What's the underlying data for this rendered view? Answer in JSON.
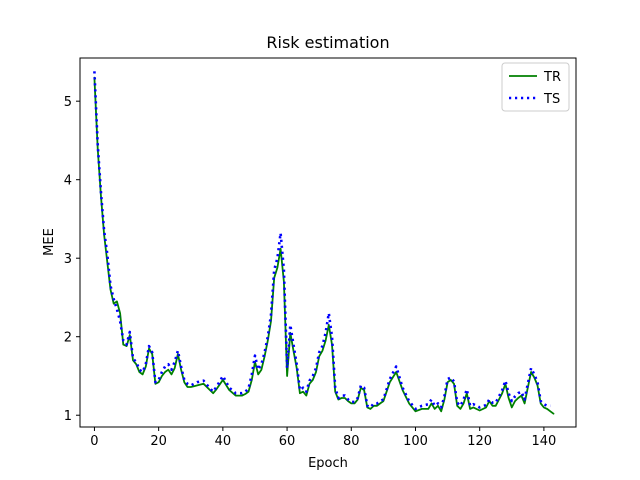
{
  "chart_data": {
    "type": "line",
    "title": "Risk estimation",
    "xlabel": "Epoch",
    "ylabel": "MEE",
    "xlim": [
      -4.5,
      150
    ],
    "ylim": [
      0.85,
      5.55
    ],
    "xticks": [
      0,
      20,
      40,
      60,
      80,
      100,
      120,
      140
    ],
    "yticks": [
      1,
      2,
      3,
      4,
      5
    ],
    "grid": false,
    "legend_position": "top-right",
    "series": [
      {
        "name": "TR",
        "color": "#008000",
        "style": "solid",
        "keypoints": [
          [
            0,
            5.3
          ],
          [
            1,
            4.4
          ],
          [
            2,
            3.8
          ],
          [
            3,
            3.3
          ],
          [
            4,
            2.95
          ],
          [
            5,
            2.6
          ],
          [
            6,
            2.42
          ],
          [
            7,
            2.45
          ],
          [
            8,
            2.3
          ],
          [
            9,
            1.9
          ],
          [
            10,
            1.88
          ],
          [
            11,
            2.02
          ],
          [
            12,
            1.7
          ],
          [
            13,
            1.65
          ],
          [
            14,
            1.55
          ],
          [
            15,
            1.52
          ],
          [
            16,
            1.62
          ],
          [
            17,
            1.85
          ],
          [
            18,
            1.78
          ],
          [
            19,
            1.4
          ],
          [
            20,
            1.42
          ],
          [
            21,
            1.5
          ],
          [
            22,
            1.55
          ],
          [
            23,
            1.58
          ],
          [
            24,
            1.52
          ],
          [
            25,
            1.6
          ],
          [
            26,
            1.78
          ],
          [
            27,
            1.58
          ],
          [
            28,
            1.42
          ],
          [
            29,
            1.36
          ],
          [
            30,
            1.36
          ],
          [
            31,
            1.37
          ],
          [
            32,
            1.38
          ],
          [
            34,
            1.4
          ],
          [
            36,
            1.32
          ],
          [
            37,
            1.28
          ],
          [
            38,
            1.33
          ],
          [
            40,
            1.45
          ],
          [
            42,
            1.32
          ],
          [
            44,
            1.25
          ],
          [
            46,
            1.25
          ],
          [
            47,
            1.27
          ],
          [
            48,
            1.3
          ],
          [
            49,
            1.45
          ],
          [
            50,
            1.68
          ],
          [
            51,
            1.52
          ],
          [
            52,
            1.58
          ],
          [
            53,
            1.75
          ],
          [
            54,
            1.95
          ],
          [
            55,
            2.2
          ],
          [
            56,
            2.75
          ],
          [
            57,
            2.88
          ],
          [
            58,
            3.12
          ],
          [
            59,
            2.7
          ],
          [
            60,
            1.5
          ],
          [
            61,
            2.05
          ],
          [
            62,
            1.82
          ],
          [
            63,
            1.6
          ],
          [
            64,
            1.28
          ],
          [
            65,
            1.3
          ],
          [
            66,
            1.25
          ],
          [
            67,
            1.4
          ],
          [
            68,
            1.45
          ],
          [
            69,
            1.55
          ],
          [
            70,
            1.75
          ],
          [
            71,
            1.82
          ],
          [
            72,
            1.95
          ],
          [
            73,
            2.15
          ],
          [
            74,
            1.9
          ],
          [
            75,
            1.3
          ],
          [
            76,
            1.2
          ],
          [
            77,
            1.22
          ],
          [
            78,
            1.22
          ],
          [
            79,
            1.18
          ],
          [
            80,
            1.15
          ],
          [
            81,
            1.15
          ],
          [
            82,
            1.2
          ],
          [
            83,
            1.35
          ],
          [
            84,
            1.32
          ],
          [
            85,
            1.1
          ],
          [
            86,
            1.08
          ],
          [
            87,
            1.12
          ],
          [
            88,
            1.12
          ],
          [
            89,
            1.15
          ],
          [
            90,
            1.18
          ],
          [
            92,
            1.42
          ],
          [
            94,
            1.55
          ],
          [
            96,
            1.32
          ],
          [
            98,
            1.15
          ],
          [
            100,
            1.05
          ],
          [
            102,
            1.08
          ],
          [
            104,
            1.08
          ],
          [
            105,
            1.15
          ],
          [
            106,
            1.08
          ],
          [
            107,
            1.12
          ],
          [
            108,
            1.05
          ],
          [
            109,
            1.2
          ],
          [
            110,
            1.42
          ],
          [
            111,
            1.45
          ],
          [
            112,
            1.4
          ],
          [
            113,
            1.12
          ],
          [
            114,
            1.08
          ],
          [
            115,
            1.15
          ],
          [
            116,
            1.28
          ],
          [
            117,
            1.08
          ],
          [
            118,
            1.1
          ],
          [
            120,
            1.06
          ],
          [
            122,
            1.1
          ],
          [
            123,
            1.18
          ],
          [
            124,
            1.12
          ],
          [
            125,
            1.12
          ],
          [
            126,
            1.2
          ],
          [
            127,
            1.28
          ],
          [
            128,
            1.4
          ],
          [
            129,
            1.22
          ],
          [
            130,
            1.1
          ],
          [
            131,
            1.18
          ],
          [
            132,
            1.22
          ],
          [
            133,
            1.25
          ],
          [
            134,
            1.15
          ],
          [
            135,
            1.35
          ],
          [
            136,
            1.55
          ],
          [
            137,
            1.48
          ],
          [
            138,
            1.38
          ],
          [
            139,
            1.15
          ],
          [
            140,
            1.1
          ],
          [
            141,
            1.08
          ],
          [
            142,
            1.05
          ],
          [
            143,
            1.02
          ]
        ]
      },
      {
        "name": "TS",
        "color": "#0000ff",
        "style": "dotted",
        "keypoints": [
          [
            0,
            5.38
          ],
          [
            1,
            4.45
          ],
          [
            2,
            3.85
          ],
          [
            3,
            3.35
          ],
          [
            4,
            3.05
          ],
          [
            5,
            2.65
          ],
          [
            6,
            2.48
          ],
          [
            7,
            2.35
          ],
          [
            8,
            2.2
          ],
          [
            9,
            1.95
          ],
          [
            10,
            1.9
          ],
          [
            11,
            2.06
          ],
          [
            12,
            1.72
          ],
          [
            13,
            1.68
          ],
          [
            14,
            1.58
          ],
          [
            15,
            1.55
          ],
          [
            16,
            1.65
          ],
          [
            17,
            1.88
          ],
          [
            18,
            1.8
          ],
          [
            19,
            1.42
          ],
          [
            20,
            1.45
          ],
          [
            21,
            1.55
          ],
          [
            22,
            1.62
          ],
          [
            23,
            1.65
          ],
          [
            24,
            1.58
          ],
          [
            25,
            1.68
          ],
          [
            26,
            1.82
          ],
          [
            27,
            1.62
          ],
          [
            28,
            1.45
          ],
          [
            29,
            1.4
          ],
          [
            30,
            1.38
          ],
          [
            31,
            1.4
          ],
          [
            32,
            1.42
          ],
          [
            34,
            1.44
          ],
          [
            36,
            1.34
          ],
          [
            37,
            1.3
          ],
          [
            38,
            1.36
          ],
          [
            40,
            1.5
          ],
          [
            42,
            1.35
          ],
          [
            44,
            1.28
          ],
          [
            46,
            1.28
          ],
          [
            47,
            1.3
          ],
          [
            48,
            1.34
          ],
          [
            49,
            1.52
          ],
          [
            50,
            1.76
          ],
          [
            51,
            1.58
          ],
          [
            52,
            1.65
          ],
          [
            53,
            1.8
          ],
          [
            54,
            2.0
          ],
          [
            55,
            2.28
          ],
          [
            56,
            2.85
          ],
          [
            57,
            3.0
          ],
          [
            58,
            3.32
          ],
          [
            59,
            2.85
          ],
          [
            60,
            1.6
          ],
          [
            61,
            2.15
          ],
          [
            62,
            1.9
          ],
          [
            63,
            1.65
          ],
          [
            64,
            1.32
          ],
          [
            65,
            1.35
          ],
          [
            66,
            1.3
          ],
          [
            67,
            1.44
          ],
          [
            68,
            1.5
          ],
          [
            69,
            1.6
          ],
          [
            70,
            1.8
          ],
          [
            71,
            1.88
          ],
          [
            72,
            2.05
          ],
          [
            73,
            2.3
          ],
          [
            74,
            2.0
          ],
          [
            75,
            1.35
          ],
          [
            76,
            1.22
          ],
          [
            77,
            1.25
          ],
          [
            78,
            1.25
          ],
          [
            79,
            1.2
          ],
          [
            80,
            1.17
          ],
          [
            81,
            1.17
          ],
          [
            82,
            1.22
          ],
          [
            83,
            1.38
          ],
          [
            84,
            1.35
          ],
          [
            85,
            1.12
          ],
          [
            86,
            1.1
          ],
          [
            87,
            1.15
          ],
          [
            88,
            1.15
          ],
          [
            89,
            1.18
          ],
          [
            90,
            1.2
          ],
          [
            92,
            1.46
          ],
          [
            94,
            1.62
          ],
          [
            96,
            1.35
          ],
          [
            98,
            1.18
          ],
          [
            100,
            1.08
          ],
          [
            102,
            1.12
          ],
          [
            104,
            1.14
          ],
          [
            105,
            1.2
          ],
          [
            106,
            1.12
          ],
          [
            107,
            1.15
          ],
          [
            108,
            1.1
          ],
          [
            109,
            1.24
          ],
          [
            110,
            1.46
          ],
          [
            111,
            1.48
          ],
          [
            112,
            1.43
          ],
          [
            113,
            1.16
          ],
          [
            114,
            1.12
          ],
          [
            115,
            1.2
          ],
          [
            116,
            1.33
          ],
          [
            117,
            1.12
          ],
          [
            118,
            1.14
          ],
          [
            120,
            1.1
          ],
          [
            122,
            1.13
          ],
          [
            123,
            1.2
          ],
          [
            124,
            1.16
          ],
          [
            125,
            1.16
          ],
          [
            126,
            1.24
          ],
          [
            127,
            1.32
          ],
          [
            128,
            1.44
          ],
          [
            129,
            1.28
          ],
          [
            130,
            1.18
          ],
          [
            131,
            1.24
          ],
          [
            132,
            1.28
          ],
          [
            133,
            1.3
          ],
          [
            134,
            1.2
          ],
          [
            135,
            1.4
          ],
          [
            136,
            1.6
          ],
          [
            137,
            1.52
          ],
          [
            138,
            1.42
          ],
          [
            139,
            1.18
          ],
          [
            140,
            1.14
          ],
          [
            141,
            1.12
          ],
          [
            142,
            1.12
          ]
        ]
      }
    ]
  }
}
